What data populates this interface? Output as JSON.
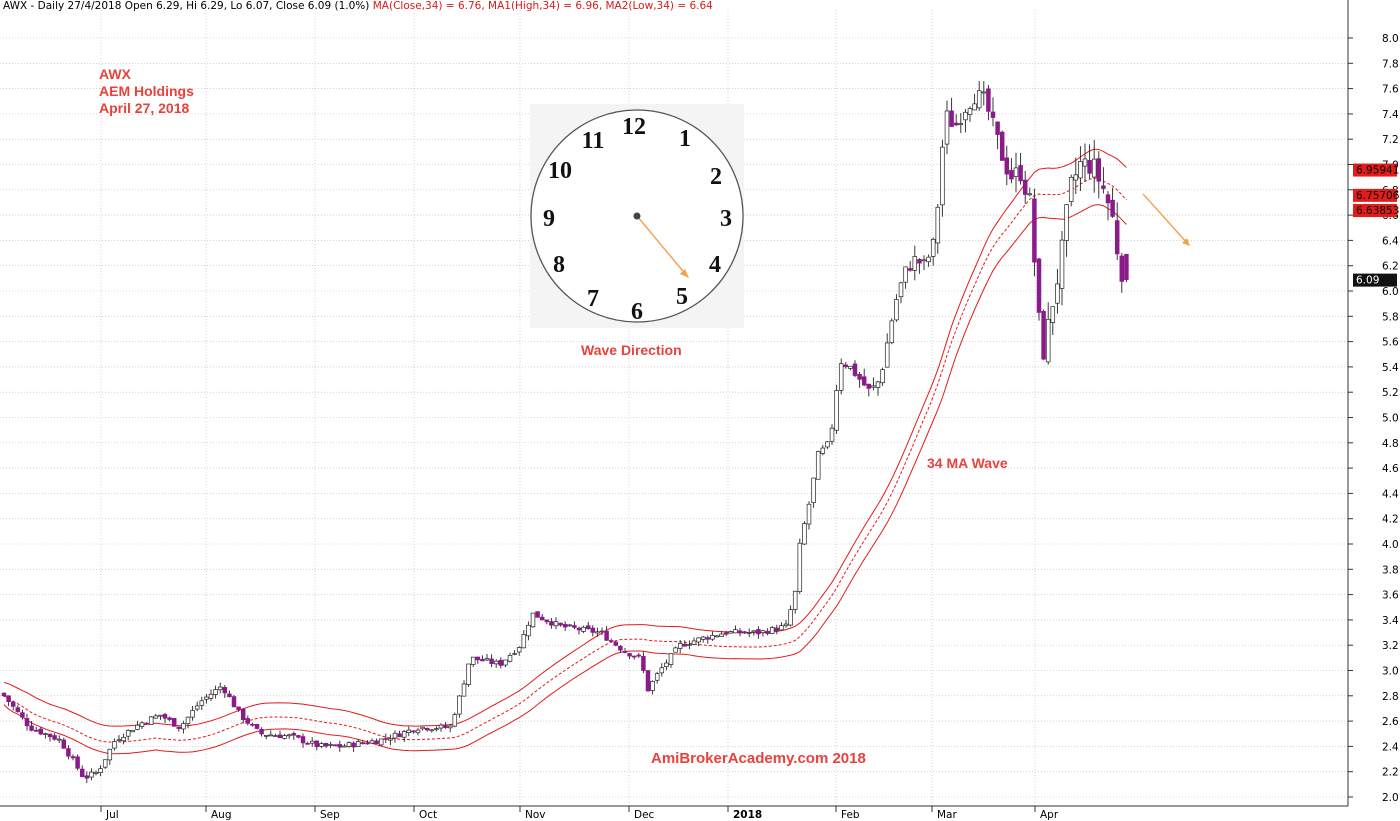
{
  "header": {
    "prefix": "AWX - Daily 27/4/2018 Open 6.29, Hi 6.29, Lo 6.07, Close 6.09 (1.0%)",
    "ma": "MA(Close,34) = 6.76,",
    "ma1": "MA1(High,34) = 6.96,",
    "ma2": "MA2(Low,34) = 6.64"
  },
  "annotations": {
    "ticker": "AWX",
    "company": "AEM Holdings",
    "date": "April 27, 2018",
    "wave_direction": "Wave Direction",
    "ma_wave": "34 MA Wave",
    "watermark": "AmiBrokerAcademy.com  2018"
  },
  "clock": {
    "numbers": [
      "12",
      "1",
      "2",
      "3",
      "4",
      "5",
      "6",
      "7",
      "8",
      "9",
      "10",
      "11"
    ],
    "hand_points_to": "5"
  },
  "price_labels": {
    "ma_high": "6.95941",
    "ma_close": "6.75706",
    "ma_low": "6.63853",
    "last": "6.09"
  },
  "colors": {
    "up_candle": "#ffffff",
    "down_candle": "#8b1a8b",
    "ma_band": "#e21b1b",
    "annotation": "#e8423c",
    "arrow": "#f5a050"
  },
  "chart_data": {
    "type": "candlestick",
    "title": "AWX - Daily 27/4/2018",
    "y_axis": {
      "min": 2.0,
      "max": 8.0,
      "ticks": [
        "2.0",
        "2.2",
        "2.4",
        "2.6",
        "2.8",
        "3.0",
        "3.2",
        "3.4",
        "3.6",
        "3.8",
        "4.0",
        "4.2",
        "4.4",
        "4.6",
        "4.8",
        "5.0",
        "5.2",
        "5.4",
        "5.6",
        "5.8",
        "6.0",
        "6.2",
        "6.4",
        "6.6",
        "6.8",
        "7.0",
        "7.2",
        "7.4",
        "7.6",
        "7.8",
        "8.0"
      ],
      "position": "right"
    },
    "x_axis": {
      "labels": [
        "Jul",
        "Aug",
        "Sep",
        "Oct",
        "Nov",
        "Dec",
        "2018",
        "Feb",
        "Mar",
        "Apr"
      ]
    },
    "grid": true,
    "series": [
      {
        "name": "MA(Close,34)",
        "style": "dashed",
        "last": 6.76
      },
      {
        "name": "MA1(High,34)",
        "style": "solid",
        "last": 6.96
      },
      {
        "name": "MA2(Low,34)",
        "style": "solid",
        "last": 6.64
      }
    ],
    "close_path": [
      [
        "Jun start",
        2.85
      ],
      [
        "late Jun",
        2.5
      ],
      [
        "Jul",
        2.15
      ],
      [
        "mid Jul",
        2.45
      ],
      [
        "late Jul",
        2.6
      ],
      [
        "Aug",
        2.85
      ],
      [
        "mid Aug",
        2.5
      ],
      [
        "Sep",
        2.35
      ],
      [
        "mid Sep",
        2.4
      ],
      [
        "Oct",
        2.55
      ],
      [
        "late Oct",
        3.1
      ],
      [
        "Nov",
        3.45
      ],
      [
        "mid Nov",
        3.3
      ],
      [
        "Dec",
        3.2
      ],
      [
        "mid Dec",
        2.85
      ],
      [
        "late Dec",
        3.25
      ],
      [
        "2018",
        3.3
      ],
      [
        "mid Jan",
        3.6
      ],
      [
        "late Jan",
        4.9
      ],
      [
        "Feb",
        5.5
      ],
      [
        "mid Feb",
        5.2
      ],
      [
        "late Feb",
        6.3
      ],
      [
        "Mar",
        7.4
      ],
      [
        "mid Mar",
        7.6
      ],
      [
        "late Mar",
        6.9
      ],
      [
        "Apr",
        5.4
      ],
      [
        "mid Apr",
        7.0
      ],
      [
        "late Apr",
        6.09
      ]
    ],
    "last_close": 6.09
  }
}
